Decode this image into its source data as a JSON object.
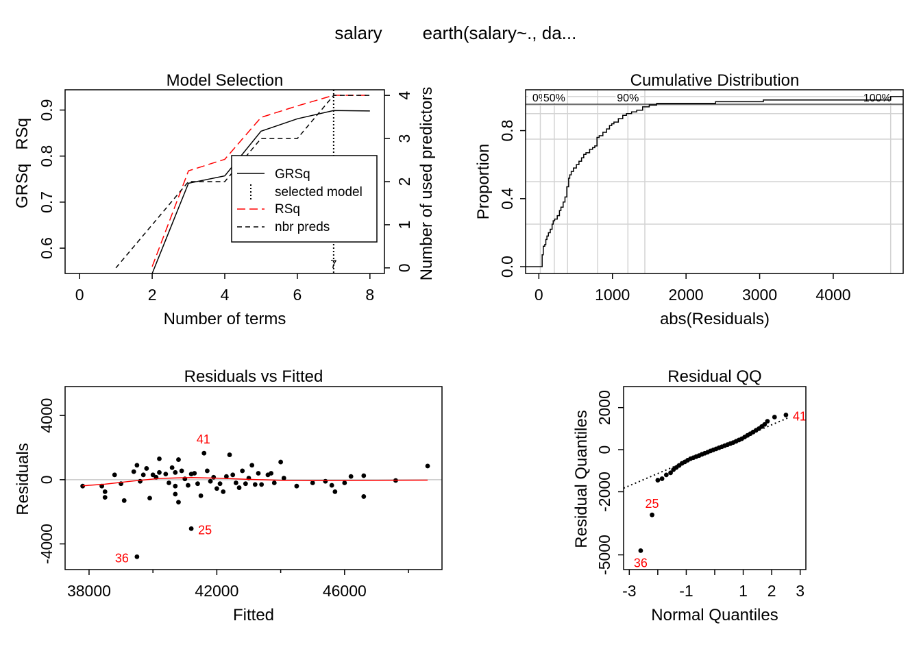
{
  "title": {
    "left": "salary",
    "right": "earth(salary~., da..."
  },
  "colors": {
    "red": "#ff0000",
    "black": "#000000",
    "grid": "#d3d3d3",
    "zero": "#c8c8c8"
  },
  "chart_data": [
    {
      "id": "model_selection",
      "type": "line",
      "title": "Model Selection",
      "xlabel": "Number of terms",
      "ylabel_left": "GRSq   RSq",
      "ylabel_right": "Number of used predictors",
      "xlim": [
        -0.4,
        8.4
      ],
      "ylim_left": [
        0.545,
        0.944
      ],
      "ylim_right": [
        -0.13,
        4.13
      ],
      "xticks": [
        0,
        2,
        4,
        6,
        8
      ],
      "yticks_left": [
        0.6,
        0.7,
        0.8,
        0.9
      ],
      "yticks_right": [
        0,
        1,
        2,
        3,
        4
      ],
      "series": [
        {
          "name": "GRSq",
          "style": "solid",
          "color": "#000000",
          "x": [
            2,
            3,
            4,
            5,
            6,
            7,
            8
          ],
          "y": [
            0.545,
            0.741,
            0.757,
            0.854,
            0.881,
            0.899,
            0.898
          ]
        },
        {
          "name": "RSq",
          "style": "dashed",
          "color": "#ff0000",
          "x": [
            2,
            3,
            4,
            5,
            6,
            7,
            8
          ],
          "y": [
            0.56,
            0.768,
            0.793,
            0.884,
            0.909,
            0.932,
            0.932
          ]
        },
        {
          "name": "nbr preds",
          "style": "shortdash",
          "color": "#000000",
          "axis": "right",
          "x": [
            1,
            2,
            3,
            4,
            5,
            6,
            7,
            8
          ],
          "y": [
            0,
            1,
            2,
            2,
            3,
            3,
            4,
            4
          ]
        }
      ],
      "selected_model": {
        "name": "selected model",
        "x": 7,
        "label": "7"
      },
      "legend": {
        "position": "right",
        "entries": [
          "GRSq",
          "selected model",
          "RSq",
          "nbr preds"
        ]
      }
    },
    {
      "id": "cumulative_distribution",
      "type": "line",
      "title": "Cumulative Distribution",
      "xlabel": "abs(Residuals)",
      "ylabel": "Proportion",
      "xlim": [
        -180,
        4950
      ],
      "ylim": [
        -0.04,
        1.04
      ],
      "xticks": [
        0,
        1000,
        2000,
        3000,
        4000
      ],
      "yticks": [
        0.0,
        0.4,
        0.8
      ],
      "hlines": [
        0.25,
        0.5,
        0.75,
        0.9,
        0.95,
        1.0
      ],
      "quantiles": [
        {
          "label": "0%",
          "x": 20
        },
        {
          "label": "50%",
          "x": 210
        },
        {
          "label": "",
          "x": 390
        },
        {
          "label": "",
          "x": 800
        },
        {
          "label": "90%",
          "x": 1210
        },
        {
          "label": "",
          "x": 1440
        },
        {
          "label": "100%",
          "x": 4780
        }
      ],
      "curve": {
        "x": [
          20,
          45,
          60,
          80,
          95,
          110,
          130,
          155,
          180,
          195,
          215,
          250,
          280,
          300,
          330,
          355,
          380,
          405,
          420,
          440,
          470,
          510,
          545,
          580,
          610,
          640,
          690,
          730,
          760,
          790,
          820,
          870,
          920,
          960,
          990,
          1020,
          1080,
          1140,
          1190,
          1260,
          1330,
          1410,
          1500,
          1600,
          1700,
          2400,
          2800,
          3050,
          3500,
          4780
        ],
        "y": [
          0.0,
          0.07,
          0.12,
          0.13,
          0.16,
          0.18,
          0.2,
          0.22,
          0.25,
          0.27,
          0.28,
          0.3,
          0.33,
          0.35,
          0.38,
          0.41,
          0.47,
          0.52,
          0.54,
          0.56,
          0.58,
          0.6,
          0.62,
          0.64,
          0.66,
          0.67,
          0.69,
          0.7,
          0.71,
          0.76,
          0.77,
          0.79,
          0.81,
          0.83,
          0.84,
          0.85,
          0.87,
          0.89,
          0.9,
          0.91,
          0.92,
          0.94,
          0.95,
          0.96,
          0.96,
          0.97,
          0.97,
          0.98,
          0.98,
          1.0
        ]
      }
    },
    {
      "id": "residuals_vs_fitted",
      "type": "scatter",
      "title": "Residuals vs Fitted",
      "xlabel": "Fitted",
      "ylabel": "Residuals",
      "xlim": [
        37250,
        49050
      ],
      "ylim": [
        -5600,
        5800
      ],
      "xticks": [
        38000,
        42000,
        46000
      ],
      "yticks": [
        -4000,
        0,
        4000
      ],
      "points": [
        [
          37800,
          -400
        ],
        [
          38400,
          -400
        ],
        [
          38500,
          -750
        ],
        [
          38500,
          -1100
        ],
        [
          38800,
          300
        ],
        [
          39000,
          -250
        ],
        [
          39100,
          -1300
        ],
        [
          39400,
          500
        ],
        [
          39500,
          900
        ],
        [
          39600,
          -100
        ],
        [
          39700,
          300
        ],
        [
          39800,
          700
        ],
        [
          39900,
          -1150
        ],
        [
          40000,
          300
        ],
        [
          40100,
          150
        ],
        [
          40200,
          450
        ],
        [
          40200,
          1300
        ],
        [
          40400,
          350
        ],
        [
          40500,
          -200
        ],
        [
          40600,
          750
        ],
        [
          40700,
          450
        ],
        [
          40700,
          -400
        ],
        [
          40700,
          -900
        ],
        [
          40800,
          -1400
        ],
        [
          40800,
          1250
        ],
        [
          40900,
          550
        ],
        [
          41000,
          50
        ],
        [
          41100,
          -350
        ],
        [
          41200,
          350
        ],
        [
          41300,
          400
        ],
        [
          41400,
          -250
        ],
        [
          41500,
          -1000
        ],
        [
          41700,
          550
        ],
        [
          41800,
          -100
        ],
        [
          41900,
          150
        ],
        [
          42000,
          -550
        ],
        [
          42100,
          -250
        ],
        [
          42200,
          -750
        ],
        [
          42300,
          200
        ],
        [
          42400,
          1550
        ],
        [
          42500,
          300
        ],
        [
          42600,
          -200
        ],
        [
          42700,
          -500
        ],
        [
          42800,
          550
        ],
        [
          42900,
          -250
        ],
        [
          43000,
          100
        ],
        [
          43100,
          900
        ],
        [
          43200,
          -300
        ],
        [
          43300,
          400
        ],
        [
          43400,
          -300
        ],
        [
          43600,
          300
        ],
        [
          43700,
          400
        ],
        [
          43800,
          -200
        ],
        [
          44000,
          1100
        ],
        [
          44100,
          100
        ],
        [
          44500,
          -400
        ],
        [
          45000,
          -200
        ],
        [
          45400,
          -100
        ],
        [
          45600,
          -350
        ],
        [
          45700,
          -750
        ],
        [
          46000,
          -200
        ],
        [
          46200,
          200
        ],
        [
          46600,
          250
        ],
        [
          46600,
          -1050
        ],
        [
          47600,
          -50
        ],
        [
          48600,
          850
        ],
        [
          41600,
          1650
        ],
        [
          41200,
          -3050
        ],
        [
          39500,
          -4800
        ]
      ],
      "labeled_points": [
        {
          "x": 41600,
          "y": 1650,
          "label": "41"
        },
        {
          "x": 41200,
          "y": -3050,
          "label": "25"
        },
        {
          "x": 39500,
          "y": -4800,
          "label": "36"
        }
      ],
      "smooth": {
        "x": [
          37800,
          38500,
          39300,
          40200,
          41200,
          42100,
          43000,
          44000,
          45000,
          46000,
          47000,
          48600
        ],
        "y": [
          -380,
          -280,
          -100,
          80,
          130,
          90,
          20,
          -40,
          -60,
          -50,
          -40,
          -30
        ]
      }
    },
    {
      "id": "residual_qq",
      "type": "scatter",
      "title": "Residual QQ",
      "xlabel": "Normal Quantiles",
      "ylabel": "Residual Quantiles",
      "xlim": [
        -3.2,
        3.2
      ],
      "ylim": [
        -5700,
        3000
      ],
      "xticks": [
        -3,
        -1,
        1,
        2,
        3
      ],
      "xticks_minor": [
        -2,
        0
      ],
      "yticks": [
        -5000,
        -2000,
        0,
        2000
      ],
      "reference_line": {
        "x": [
          -3.2,
          2.6
        ],
        "y": [
          -1830,
          1530
        ]
      },
      "points": [
        [
          -2.6,
          -4800
        ],
        [
          -2.2,
          -3100
        ],
        [
          -2.0,
          -1450
        ],
        [
          -1.85,
          -1380
        ],
        [
          -1.7,
          -1200
        ],
        [
          -1.55,
          -1100
        ],
        [
          -1.45,
          -950
        ],
        [
          -1.35,
          -850
        ],
        [
          -1.25,
          -750
        ],
        [
          -1.15,
          -650
        ],
        [
          -1.05,
          -580
        ],
        [
          -0.95,
          -500
        ],
        [
          -0.85,
          -430
        ],
        [
          -0.75,
          -380
        ],
        [
          -0.65,
          -330
        ],
        [
          -0.55,
          -280
        ],
        [
          -0.45,
          -220
        ],
        [
          -0.35,
          -170
        ],
        [
          -0.25,
          -120
        ],
        [
          -0.15,
          -60
        ],
        [
          -0.05,
          -10
        ],
        [
          0.05,
          40
        ],
        [
          0.15,
          90
        ],
        [
          0.25,
          140
        ],
        [
          0.35,
          190
        ],
        [
          0.45,
          240
        ],
        [
          0.55,
          290
        ],
        [
          0.65,
          340
        ],
        [
          0.75,
          400
        ],
        [
          0.85,
          460
        ],
        [
          0.95,
          520
        ],
        [
          1.05,
          600
        ],
        [
          1.15,
          680
        ],
        [
          1.25,
          760
        ],
        [
          1.35,
          840
        ],
        [
          1.45,
          920
        ],
        [
          1.55,
          1000
        ],
        [
          1.65,
          1100
        ],
        [
          1.75,
          1200
        ],
        [
          1.85,
          1350
        ],
        [
          2.1,
          1550
        ],
        [
          2.5,
          1650
        ]
      ],
      "labeled_points": [
        {
          "x": 2.5,
          "y": 1650,
          "label": "41"
        },
        {
          "x": -2.2,
          "y": -3100,
          "label": "25"
        },
        {
          "x": -2.6,
          "y": -4800,
          "label": "36"
        }
      ]
    }
  ]
}
